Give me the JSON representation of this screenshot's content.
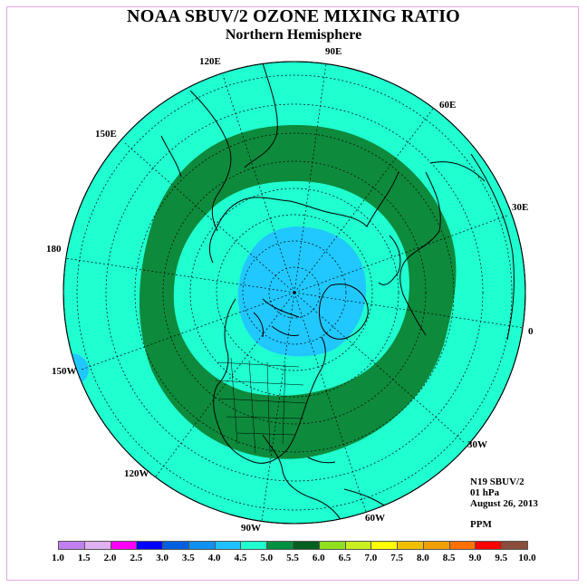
{
  "title": "NOAA SBUV/2 OZONE MIXING RATIO",
  "subtitle": "Northern Hemisphere",
  "longitude_labels": {
    "e90": "90E",
    "e60": "60E",
    "e30": "30E",
    "zero": "0",
    "w30": "30W",
    "w60": "60W",
    "w90": "90W",
    "w120": "120W",
    "w150": "150W",
    "d180": "180",
    "e150": "150E",
    "e120": "120E"
  },
  "info": {
    "instrument": "N19 SBUV/2",
    "level": "01 hPa",
    "date": "August 26, 2013",
    "units": "PPM"
  },
  "colorbar": {
    "labels": [
      "1.0",
      "1.5",
      "2.0",
      "2.5",
      "3.0",
      "3.5",
      "4.0",
      "4.5",
      "5.0",
      "5.5",
      "6.0",
      "6.5",
      "7.0",
      "7.5",
      "8.0",
      "8.5",
      "9.0",
      "9.5",
      "10.0"
    ],
    "colors": [
      "#c080f0",
      "#e0b0f0",
      "#ff00ff",
      "#0000ff",
      "#0060e0",
      "#1090f0",
      "#20c0ff",
      "#1fffd0",
      "#009040",
      "#006020",
      "#90e020",
      "#c8f020",
      "#ffff00",
      "#f0c000",
      "#f0a000",
      "#ff7000",
      "#ff0000",
      "#8b4c39"
    ]
  },
  "field_levels": {
    "background": "4.5-5.0",
    "ring": "5.0-5.5",
    "pole_low": "4.0-4.5",
    "ring_color": "#0d8a3c",
    "background_color": "#1fffd0",
    "pole_color": "#20c8ff"
  }
}
